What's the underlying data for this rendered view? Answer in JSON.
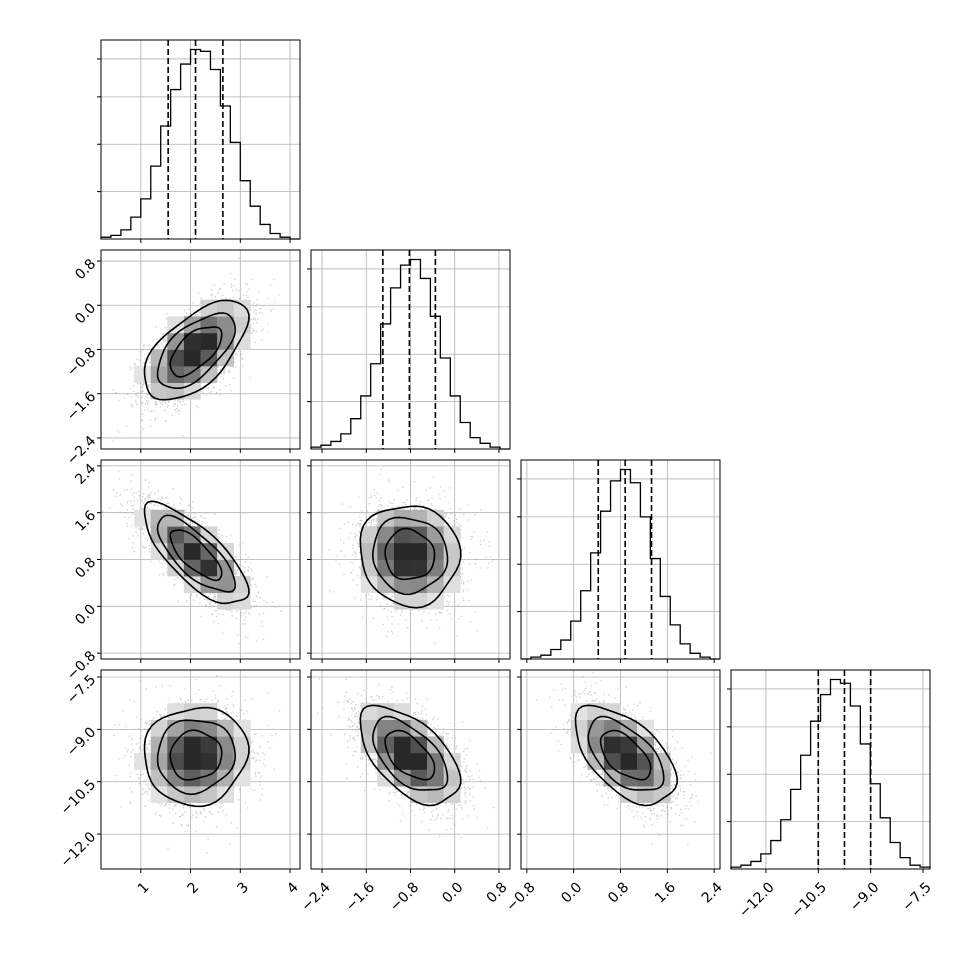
{
  "chart_data": {
    "type": "corner",
    "parameters": [
      {
        "index": 0,
        "range": [
          0.2,
          4.2
        ],
        "ticks": [
          1,
          2,
          3,
          4
        ],
        "tick_labels": [
          "1",
          "2",
          "3",
          "4"
        ],
        "quantiles": [
          1.55,
          2.1,
          2.65
        ],
        "bin_edges": [
          0.2,
          0.4,
          0.6,
          0.8,
          1.0,
          1.2,
          1.4,
          1.6,
          1.8,
          2.0,
          2.2,
          2.4,
          2.6,
          2.8,
          3.0,
          3.2,
          3.4,
          3.6,
          3.8,
          4.0,
          4.2
        ],
        "counts": [
          1,
          2,
          5,
          12,
          22,
          40,
          62,
          82,
          96,
          104,
          103,
          93,
          73,
          53,
          32,
          18,
          8,
          3,
          1,
          0
        ]
      },
      {
        "index": 1,
        "range": [
          -2.6,
          1.0
        ],
        "ticks": [
          -2.4,
          -1.6,
          -0.8,
          0.0,
          0.8
        ],
        "tick_labels": [
          "−2.4",
          "−1.6",
          "−0.8",
          "0.0",
          "0.8"
        ],
        "quantiles": [
          -1.3,
          -0.82,
          -0.35
        ],
        "bin_edges": [
          -2.6,
          -2.42,
          -2.24,
          -2.06,
          -1.88,
          -1.7,
          -1.52,
          -1.34,
          -1.16,
          -0.98,
          -0.8,
          -0.62,
          -0.44,
          -0.26,
          -0.08,
          0.1,
          0.28,
          0.46,
          0.64,
          0.82,
          1.0
        ],
        "counts": [
          1,
          2,
          4,
          8,
          16,
          28,
          45,
          66,
          85,
          97,
          100,
          90,
          70,
          48,
          28,
          14,
          6,
          3,
          1,
          0
        ]
      },
      {
        "index": 2,
        "range": [
          -0.9,
          2.5
        ],
        "ticks": [
          -0.8,
          0.0,
          0.8,
          1.6,
          2.4
        ],
        "tick_labels": [
          "−0.8",
          "0.0",
          "0.8",
          "1.6",
          "2.4"
        ],
        "quantiles": [
          0.42,
          0.88,
          1.33
        ],
        "bin_edges": [
          -0.9,
          -0.73,
          -0.56,
          -0.39,
          -0.22,
          -0.05,
          0.12,
          0.29,
          0.46,
          0.63,
          0.8,
          0.97,
          1.14,
          1.31,
          1.48,
          1.65,
          1.82,
          1.99,
          2.16,
          2.33,
          2.5
        ],
        "counts": [
          0,
          1,
          2,
          5,
          10,
          20,
          36,
          56,
          78,
          94,
          100,
          93,
          75,
          53,
          33,
          18,
          8,
          3,
          1,
          0
        ]
      },
      {
        "index": 3,
        "range": [
          -13.0,
          -7.3
        ],
        "ticks": [
          -12.0,
          -10.5,
          -9.0,
          -7.5
        ],
        "tick_labels": [
          "−12.0",
          "−10.5",
          "−9.0",
          "−7.5"
        ],
        "quantiles": [
          -10.5,
          -9.75,
          -9.0
        ],
        "bin_edges": [
          -13.0,
          -12.715,
          -12.43,
          -12.145,
          -11.86,
          -11.575,
          -11.29,
          -11.005,
          -10.72,
          -10.435,
          -10.15,
          -9.865,
          -9.58,
          -9.295,
          -9.01,
          -8.725,
          -8.44,
          -8.155,
          -7.87,
          -7.585,
          -7.3
        ],
        "counts": [
          1,
          2,
          4,
          8,
          15,
          26,
          42,
          60,
          78,
          92,
          100,
          98,
          86,
          66,
          45,
          27,
          14,
          6,
          2,
          1
        ]
      }
    ],
    "pairs": [
      {
        "row": 1,
        "col": 0,
        "mean": [
          2.1,
          -0.82
        ],
        "sd": [
          0.52,
          0.45
        ],
        "rho": 0.6
      },
      {
        "row": 2,
        "col": 0,
        "mean": [
          2.1,
          0.88
        ],
        "sd": [
          0.52,
          0.43
        ],
        "rho": -0.75
      },
      {
        "row": 2,
        "col": 1,
        "mean": [
          -0.82,
          0.88
        ],
        "sd": [
          0.45,
          0.43
        ],
        "rho": -0.05
      },
      {
        "row": 3,
        "col": 0,
        "mean": [
          2.1,
          -9.75
        ],
        "sd": [
          0.52,
          0.7
        ],
        "rho": 0.05
      },
      {
        "row": 3,
        "col": 1,
        "mean": [
          -0.82,
          -9.75
        ],
        "sd": [
          0.45,
          0.7
        ],
        "rho": -0.55
      },
      {
        "row": 3,
        "col": 2,
        "mean": [
          0.88,
          -9.75
        ],
        "sd": [
          0.43,
          0.7
        ],
        "rho": -0.55
      }
    ],
    "grid": true,
    "colors": {
      "line": "#000000",
      "grid": "#b0b0b0",
      "scatter": "#a6a6a6"
    }
  }
}
